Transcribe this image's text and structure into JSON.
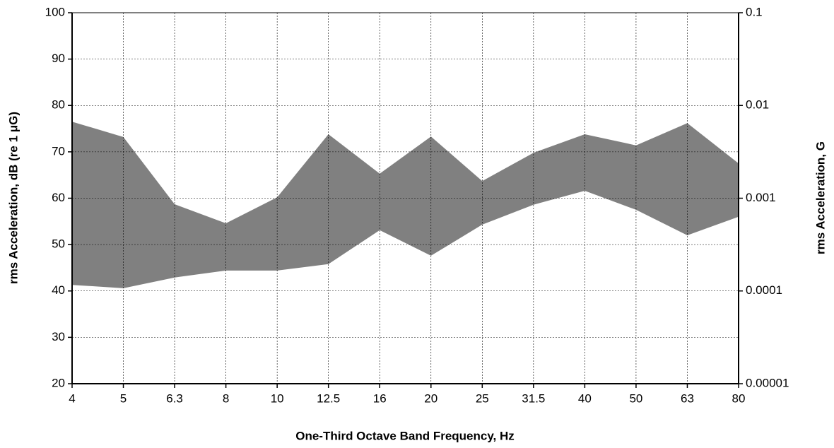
{
  "chart_data": {
    "type": "band",
    "x_label": "One-Third Octave Band Frequency, Hz",
    "y_label": "rms Acceleration, dB (re 1 μG)",
    "y2_label": "rms Acceleration, G",
    "categories": [
      "4",
      "5",
      "6.3",
      "8",
      "10",
      "12.5",
      "16",
      "20",
      "25",
      "31.5",
      "40",
      "50",
      "63",
      "80"
    ],
    "series": [
      {
        "color": "#808080",
        "values": [
          41.3,
          40.6,
          42.9,
          44.4,
          44.4,
          45.8,
          53.1,
          47.6,
          54.3,
          58.6,
          61.6,
          57.5,
          52,
          56
        ]
      },
      {
        "color": "#808080",
        "values": [
          76.5,
          73.2,
          58.7,
          54.6,
          60.2,
          73.8,
          65.3,
          73.3,
          63.7,
          69.8,
          73.8,
          71.4,
          76.2,
          67.5
        ]
      }
    ],
    "ylim": [
      20,
      100
    ],
    "yticks": [
      20,
      30,
      40,
      50,
      60,
      70,
      80,
      90,
      100
    ],
    "y2lim": [
      1e-05,
      0.1
    ],
    "y2ticks": [
      1e-05,
      0.0001,
      0.001,
      0.01,
      0.1
    ],
    "y2_log": true,
    "grid": true
  }
}
